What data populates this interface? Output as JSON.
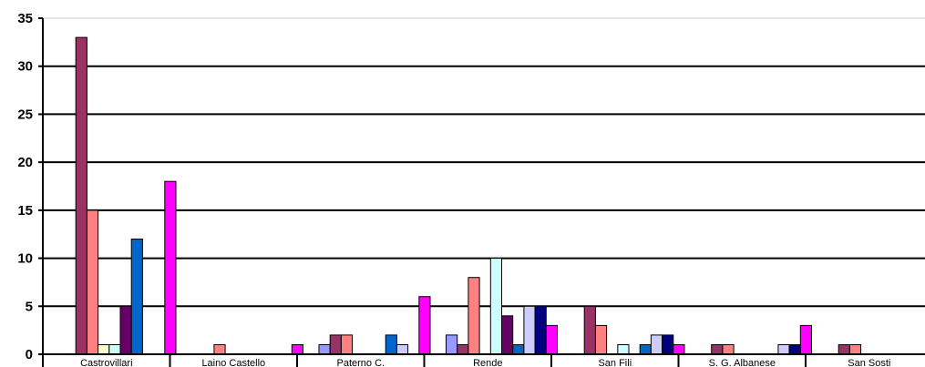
{
  "chart_data": {
    "type": "bar",
    "title": "",
    "xlabel": "",
    "ylabel": "",
    "ylim": [
      0,
      35
    ],
    "yticks": [
      0,
      5,
      10,
      15,
      20,
      25,
      30,
      35
    ],
    "grid": true,
    "legend": "none",
    "categories": [
      "Castrovillari",
      "Laino Castello",
      "Paterno C.",
      "Rende",
      "San Fili",
      "S. G. Albanese",
      "San Sosti"
    ],
    "series": [
      {
        "color": "#9999FF",
        "values": [
          0,
          0,
          1,
          2,
          0,
          0,
          0
        ]
      },
      {
        "color": "#993366",
        "values": [
          33,
          0,
          2,
          1,
          5,
          1,
          1
        ]
      },
      {
        "color": "#FF8080",
        "values": [
          15,
          1,
          2,
          8,
          3,
          1,
          1
        ]
      },
      {
        "color": "#FFFFCC",
        "values": [
          1,
          0,
          0,
          0,
          0,
          0,
          0
        ]
      },
      {
        "color": "#CCFFFF",
        "values": [
          1,
          0,
          0,
          10,
          1,
          0,
          0
        ]
      },
      {
        "color": "#660066",
        "values": [
          5,
          0,
          0,
          4,
          0,
          0,
          0
        ]
      },
      {
        "color": "#0066CC",
        "values": [
          12,
          0,
          2,
          1,
          1,
          0,
          0
        ]
      },
      {
        "color": "#CCCCFF",
        "values": [
          0,
          0,
          1,
          5,
          2,
          1,
          0
        ]
      },
      {
        "color": "#000080",
        "values": [
          0,
          0,
          0,
          5,
          2,
          1,
          0
        ]
      },
      {
        "color": "#FF00FF",
        "values": [
          18,
          1,
          6,
          3,
          1,
          3,
          1
        ]
      }
    ]
  }
}
